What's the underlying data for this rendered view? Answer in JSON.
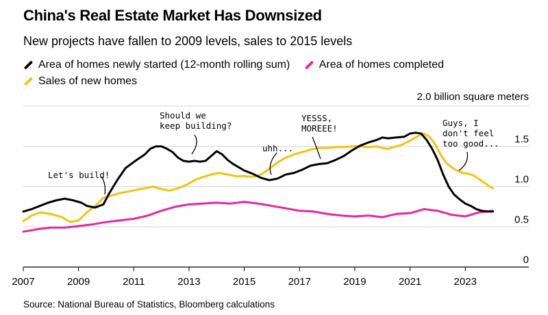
{
  "chart_data": {
    "type": "line",
    "title": "China's Real Estate Market Has Downsized",
    "subtitle": "New projects have fallen to 2009 levels, sales to 2015 levels",
    "y_unit_label": "2.0 billion square meters",
    "source": "Source: National Bureau of Statistics, Bloomberg calculations",
    "xlim": [
      2007,
      2025.3
    ],
    "ylim": [
      0,
      2.0
    ],
    "x_ticks": [
      {
        "value": 2007,
        "label": "2007"
      },
      {
        "value": 2009,
        "label": "2009"
      },
      {
        "value": 2011,
        "label": "2011"
      },
      {
        "value": 2013,
        "label": "2013"
      },
      {
        "value": 2015,
        "label": "2015"
      },
      {
        "value": 2017,
        "label": "2017"
      },
      {
        "value": 2019,
        "label": "2019"
      },
      {
        "value": 2021,
        "label": "2021"
      },
      {
        "value": 2023,
        "label": "2023"
      }
    ],
    "y_ticks": [
      {
        "value": 1.5,
        "label": "1.5"
      },
      {
        "value": 1.0,
        "label": "1.0"
      },
      {
        "value": 0.5,
        "label": "0.5"
      },
      {
        "value": 0,
        "label": "0"
      }
    ],
    "gridlines": [
      0.5,
      1.0,
      1.5,
      2.0
    ],
    "legend_position": "top-left",
    "series": [
      {
        "name": "Area of homes newly started (12-month rolling sum)",
        "color": "#000000",
        "points": [
          [
            2007.0,
            0.69
          ],
          [
            2007.3,
            0.72
          ],
          [
            2007.6,
            0.76
          ],
          [
            2007.9,
            0.8
          ],
          [
            2008.2,
            0.83
          ],
          [
            2008.5,
            0.85
          ],
          [
            2008.8,
            0.83
          ],
          [
            2009.1,
            0.8
          ],
          [
            2009.3,
            0.76
          ],
          [
            2009.6,
            0.74
          ],
          [
            2009.9,
            0.78
          ],
          [
            2010.1,
            0.91
          ],
          [
            2010.4,
            1.08
          ],
          [
            2010.7,
            1.23
          ],
          [
            2010.9,
            1.28
          ],
          [
            2011.1,
            1.33
          ],
          [
            2011.4,
            1.4
          ],
          [
            2011.6,
            1.47
          ],
          [
            2011.8,
            1.5
          ],
          [
            2012.0,
            1.5
          ],
          [
            2012.2,
            1.47
          ],
          [
            2012.4,
            1.43
          ],
          [
            2012.6,
            1.36
          ],
          [
            2012.8,
            1.32
          ],
          [
            2013.0,
            1.31
          ],
          [
            2013.2,
            1.32
          ],
          [
            2013.4,
            1.31
          ],
          [
            2013.6,
            1.32
          ],
          [
            2013.8,
            1.38
          ],
          [
            2014.0,
            1.44
          ],
          [
            2014.2,
            1.4
          ],
          [
            2014.4,
            1.33
          ],
          [
            2014.6,
            1.28
          ],
          [
            2014.8,
            1.24
          ],
          [
            2015.0,
            1.2
          ],
          [
            2015.3,
            1.16
          ],
          [
            2015.6,
            1.11
          ],
          [
            2015.9,
            1.08
          ],
          [
            2016.2,
            1.1
          ],
          [
            2016.5,
            1.15
          ],
          [
            2016.8,
            1.17
          ],
          [
            2017.1,
            1.21
          ],
          [
            2017.4,
            1.26
          ],
          [
            2017.7,
            1.28
          ],
          [
            2018.0,
            1.29
          ],
          [
            2018.3,
            1.33
          ],
          [
            2018.6,
            1.38
          ],
          [
            2018.9,
            1.45
          ],
          [
            2019.2,
            1.51
          ],
          [
            2019.5,
            1.55
          ],
          [
            2019.8,
            1.58
          ],
          [
            2020.0,
            1.61
          ],
          [
            2020.2,
            1.6
          ],
          [
            2020.5,
            1.61
          ],
          [
            2020.8,
            1.62
          ],
          [
            2021.0,
            1.66
          ],
          [
            2021.2,
            1.67
          ],
          [
            2021.4,
            1.66
          ],
          [
            2021.6,
            1.58
          ],
          [
            2021.8,
            1.47
          ],
          [
            2022.0,
            1.33
          ],
          [
            2022.2,
            1.15
          ],
          [
            2022.4,
            1.0
          ],
          [
            2022.6,
            0.9
          ],
          [
            2022.8,
            0.84
          ],
          [
            2023.0,
            0.79
          ],
          [
            2023.2,
            0.76
          ],
          [
            2023.4,
            0.72
          ],
          [
            2023.6,
            0.7
          ],
          [
            2023.8,
            0.69
          ],
          [
            2024.0,
            0.69
          ]
        ]
      },
      {
        "name": "Area of homes completed",
        "color": "#e8279a",
        "points": [
          [
            2007.0,
            0.44
          ],
          [
            2007.5,
            0.47
          ],
          [
            2008.0,
            0.49
          ],
          [
            2008.5,
            0.49
          ],
          [
            2009.0,
            0.51
          ],
          [
            2009.5,
            0.53
          ],
          [
            2010.0,
            0.56
          ],
          [
            2010.5,
            0.58
          ],
          [
            2011.0,
            0.6
          ],
          [
            2011.5,
            0.64
          ],
          [
            2012.0,
            0.7
          ],
          [
            2012.5,
            0.75
          ],
          [
            2013.0,
            0.78
          ],
          [
            2013.5,
            0.79
          ],
          [
            2014.0,
            0.8
          ],
          [
            2014.5,
            0.79
          ],
          [
            2015.0,
            0.81
          ],
          [
            2015.5,
            0.79
          ],
          [
            2016.0,
            0.76
          ],
          [
            2016.5,
            0.73
          ],
          [
            2017.0,
            0.7
          ],
          [
            2017.5,
            0.69
          ],
          [
            2018.0,
            0.66
          ],
          [
            2018.5,
            0.64
          ],
          [
            2019.0,
            0.63
          ],
          [
            2019.5,
            0.64
          ],
          [
            2020.0,
            0.62
          ],
          [
            2020.5,
            0.66
          ],
          [
            2021.0,
            0.67
          ],
          [
            2021.5,
            0.72
          ],
          [
            2022.0,
            0.7
          ],
          [
            2022.5,
            0.65
          ],
          [
            2023.0,
            0.63
          ],
          [
            2023.5,
            0.68
          ],
          [
            2024.0,
            0.7
          ]
        ]
      },
      {
        "name": "Sales of new homes",
        "color": "#f2c40c",
        "points": [
          [
            2007.0,
            0.57
          ],
          [
            2007.3,
            0.64
          ],
          [
            2007.6,
            0.68
          ],
          [
            2008.0,
            0.66
          ],
          [
            2008.4,
            0.62
          ],
          [
            2008.7,
            0.56
          ],
          [
            2009.0,
            0.58
          ],
          [
            2009.3,
            0.68
          ],
          [
            2009.6,
            0.76
          ],
          [
            2009.9,
            0.86
          ],
          [
            2010.2,
            0.89
          ],
          [
            2010.5,
            0.92
          ],
          [
            2010.8,
            0.94
          ],
          [
            2011.1,
            0.96
          ],
          [
            2011.4,
            0.98
          ],
          [
            2011.7,
            1.0
          ],
          [
            2012.0,
            0.97
          ],
          [
            2012.3,
            0.95
          ],
          [
            2012.6,
            0.98
          ],
          [
            2012.9,
            1.02
          ],
          [
            2013.2,
            1.08
          ],
          [
            2013.5,
            1.12
          ],
          [
            2013.8,
            1.15
          ],
          [
            2014.1,
            1.17
          ],
          [
            2014.4,
            1.15
          ],
          [
            2014.7,
            1.13
          ],
          [
            2015.0,
            1.13
          ],
          [
            2015.3,
            1.12
          ],
          [
            2015.6,
            1.15
          ],
          [
            2015.9,
            1.22
          ],
          [
            2016.2,
            1.3
          ],
          [
            2016.5,
            1.36
          ],
          [
            2016.8,
            1.4
          ],
          [
            2017.1,
            1.43
          ],
          [
            2017.4,
            1.46
          ],
          [
            2017.7,
            1.48
          ],
          [
            2018.0,
            1.48
          ],
          [
            2018.3,
            1.49
          ],
          [
            2018.6,
            1.49
          ],
          [
            2018.9,
            1.5
          ],
          [
            2019.2,
            1.5
          ],
          [
            2019.5,
            1.49
          ],
          [
            2019.8,
            1.5
          ],
          [
            2020.0,
            1.48
          ],
          [
            2020.2,
            1.47
          ],
          [
            2020.4,
            1.49
          ],
          [
            2020.7,
            1.52
          ],
          [
            2021.0,
            1.57
          ],
          [
            2021.3,
            1.63
          ],
          [
            2021.5,
            1.66
          ],
          [
            2021.7,
            1.62
          ],
          [
            2021.9,
            1.53
          ],
          [
            2022.1,
            1.4
          ],
          [
            2022.3,
            1.3
          ],
          [
            2022.5,
            1.24
          ],
          [
            2022.7,
            1.2
          ],
          [
            2022.9,
            1.17
          ],
          [
            2023.1,
            1.16
          ],
          [
            2023.3,
            1.14
          ],
          [
            2023.6,
            1.07
          ],
          [
            2023.8,
            1.02
          ],
          [
            2024.0,
            0.98
          ]
        ]
      }
    ],
    "annotations": [
      {
        "lines": [
          "Let's build!"
        ],
        "x": 2009.7,
        "y": 0.78
      },
      {
        "lines": [
          "Should we",
          "keep building?"
        ],
        "x": 2013.0,
        "y": 1.38
      },
      {
        "lines": [
          "uhh..."
        ],
        "x": 2016.0,
        "y": 1.11
      },
      {
        "lines": [
          "YESSS,",
          "MOREEE!"
        ],
        "x": 2017.9,
        "y": 1.33
      },
      {
        "lines": [
          "Guys, I",
          "don't feel",
          "too good..."
        ],
        "x": 2022.6,
        "y": 1.21
      }
    ]
  }
}
